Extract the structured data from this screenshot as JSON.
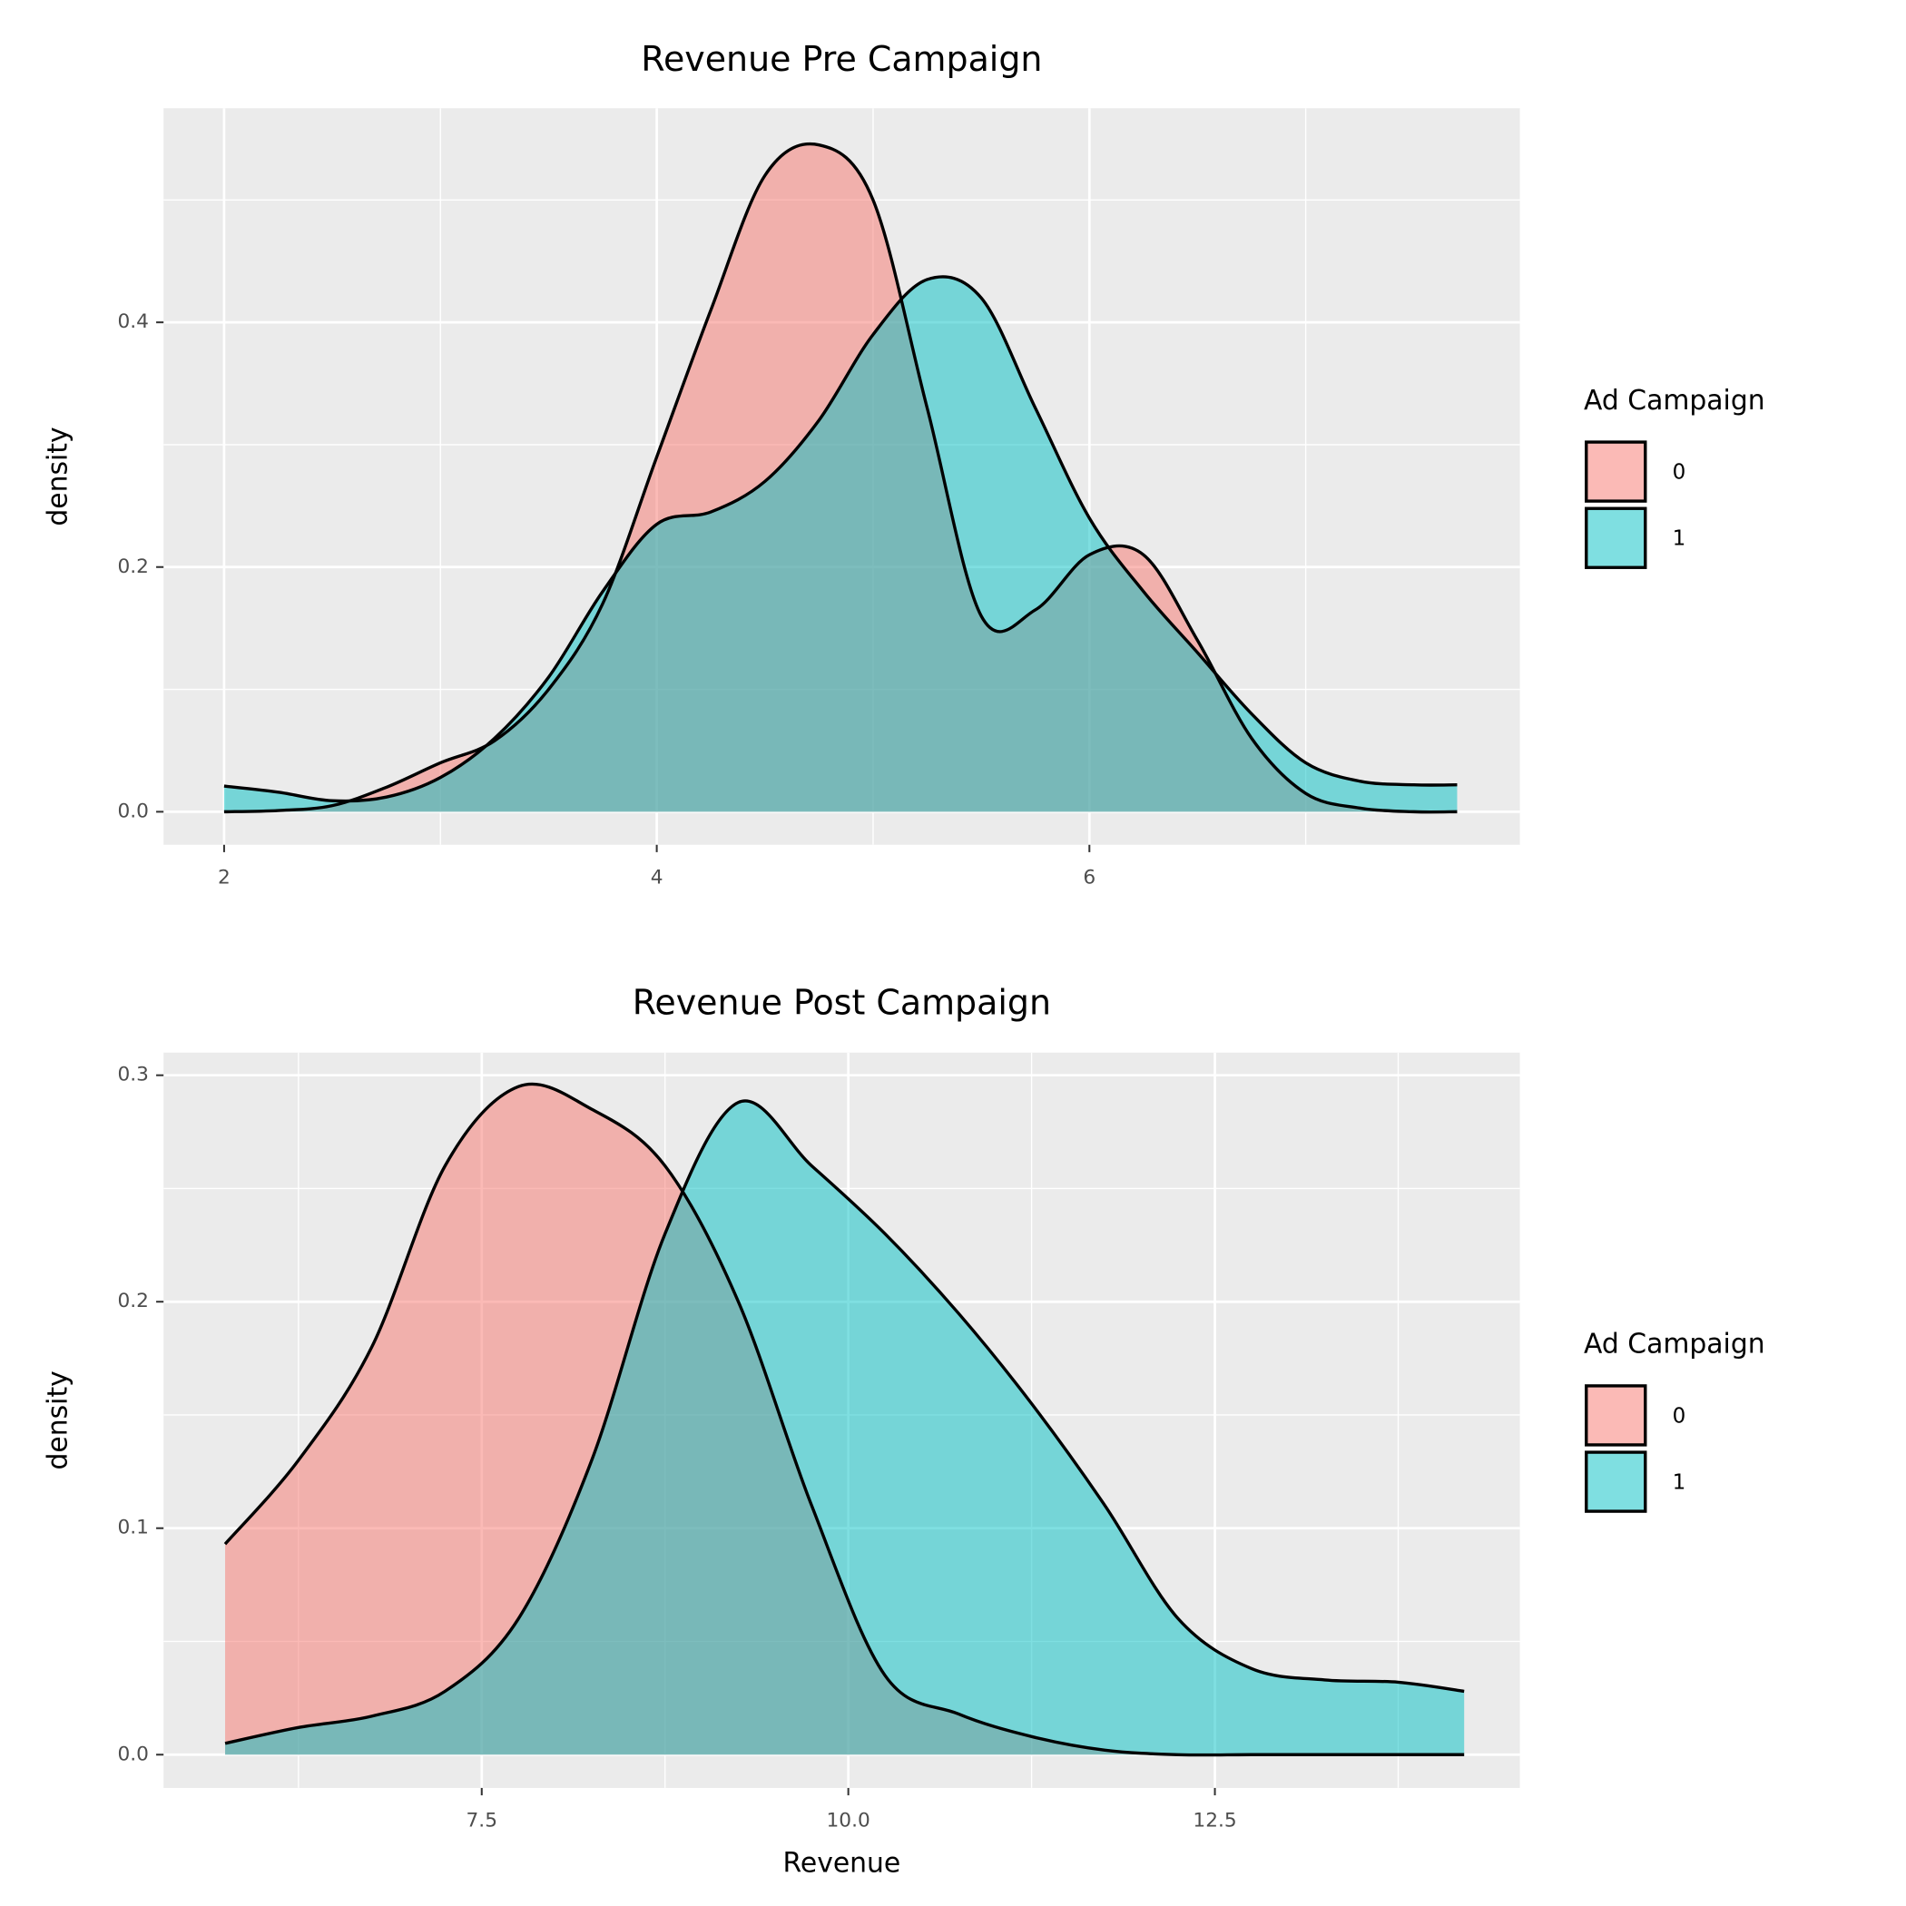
{
  "chart_data": [
    {
      "type": "density",
      "title": "Revenue Pre Campaign",
      "ylabel": "density",
      "legend_title": "Ad Campaign",
      "legend": "right",
      "grid": true,
      "x": [
        2,
        2.25,
        2.5,
        2.75,
        3,
        3.25,
        3.5,
        3.75,
        4,
        4.25,
        4.5,
        4.75,
        5,
        5.25,
        5.5,
        5.75,
        6,
        6.25,
        6.5,
        6.75,
        7,
        7.25,
        7.5,
        7.7
      ],
      "series": [
        {
          "name": "0",
          "color": "#F8766D",
          "values": [
            0.0,
            0.001,
            0.005,
            0.02,
            0.04,
            0.058,
            0.1,
            0.17,
            0.29,
            0.41,
            0.52,
            0.545,
            0.5,
            0.33,
            0.16,
            0.165,
            0.21,
            0.21,
            0.14,
            0.06,
            0.015,
            0.003,
            0.0,
            0.0
          ]
        },
        {
          "name": "1",
          "color": "#00BFC4",
          "values": [
            0.021,
            0.016,
            0.009,
            0.012,
            0.028,
            0.06,
            0.11,
            0.18,
            0.235,
            0.245,
            0.27,
            0.32,
            0.39,
            0.435,
            0.42,
            0.33,
            0.24,
            0.18,
            0.13,
            0.08,
            0.04,
            0.025,
            0.022,
            0.022
          ]
        }
      ],
      "xlim": [
        1.72,
        7.99
      ],
      "xticks": [
        2,
        4,
        6
      ],
      "ylim": [
        -0.027,
        0.575
      ],
      "yticks": [
        {
          "value": 0,
          "label": "0.0"
        },
        0.2,
        0.4
      ]
    },
    {
      "type": "density",
      "title": "Revenue Post Campaign",
      "xlabel": "Revenue",
      "ylabel": "density",
      "legend_title": "Ad Campaign",
      "legend": "right",
      "grid": true,
      "x": [
        5.75,
        6.25,
        6.75,
        7.25,
        7.75,
        8.25,
        8.75,
        9.25,
        9.75,
        10.25,
        10.75,
        11.25,
        11.75,
        12.25,
        12.75,
        13.25,
        13.75,
        14.2
      ],
      "series": [
        {
          "name": "0",
          "color": "#F8766D",
          "values": [
            0.093,
            0.13,
            0.18,
            0.26,
            0.295,
            0.285,
            0.26,
            0.2,
            0.11,
            0.035,
            0.018,
            0.008,
            0.002,
            0.0,
            0.0,
            0.0,
            0.0,
            0.0
          ]
        },
        {
          "name": "1",
          "color": "#00BFC4",
          "values": [
            0.005,
            0.012,
            0.017,
            0.028,
            0.06,
            0.13,
            0.23,
            0.288,
            0.26,
            0.23,
            0.195,
            0.155,
            0.11,
            0.06,
            0.038,
            0.033,
            0.032,
            0.028
          ]
        }
      ],
      "xlim": [
        5.33,
        14.58
      ],
      "xticks": [
        7.5,
        {
          "value": 10,
          "label": "10.0"
        },
        12.5
      ],
      "ylim": [
        -0.0147,
        0.31
      ],
      "yticks": [
        {
          "value": 0,
          "label": "0.0"
        },
        0.1,
        0.2,
        0.3
      ]
    }
  ]
}
